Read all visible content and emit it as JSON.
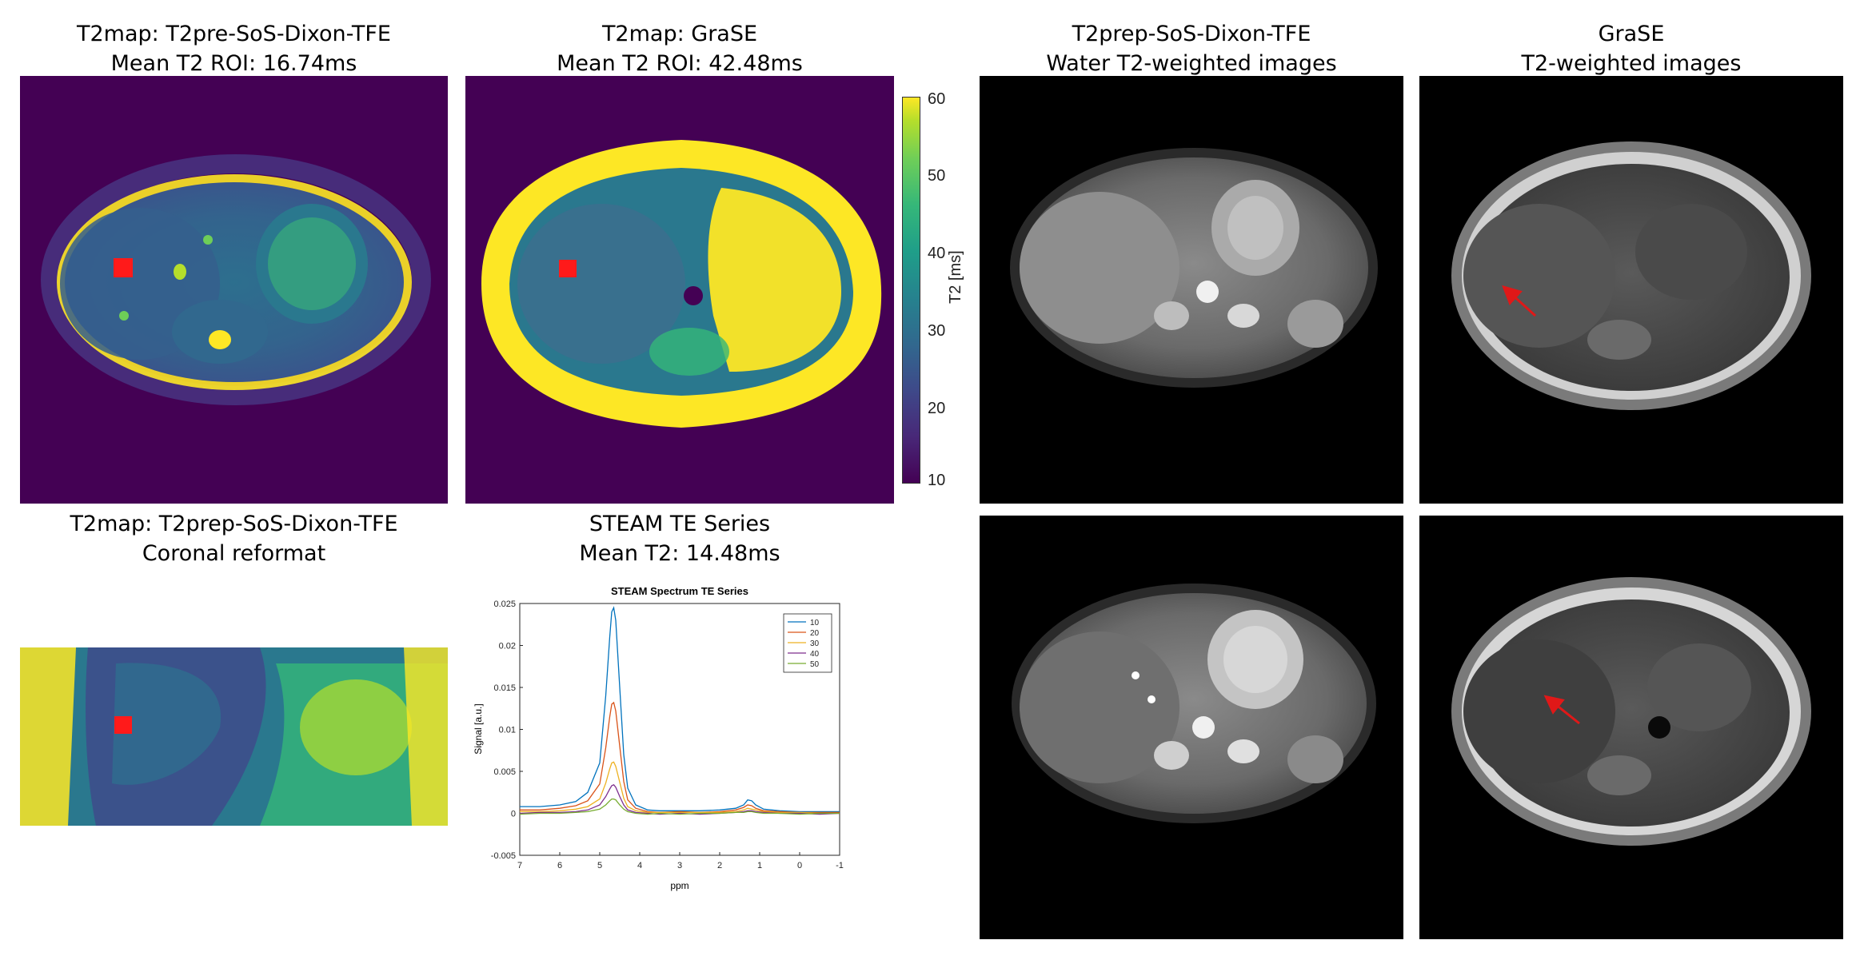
{
  "panels": {
    "t2map_sos": {
      "title": "T2map: T2pre-SoS-Dixon-TFE",
      "subtitle": "Mean T2 ROI: 16.74ms"
    },
    "t2map_grase": {
      "title": "T2map: GraSE",
      "subtitle": "Mean T2 ROI: 42.48ms"
    },
    "water_t2w": {
      "title": "T2prep-SoS-Dixon-TFE",
      "subtitle": "Water T2-weighted images"
    },
    "grase_t2w": {
      "title": "GraSE",
      "subtitle": "T2-weighted images"
    },
    "coronal": {
      "title": "T2map: T2prep-SoS-Dixon-TFE",
      "subtitle": "Coronal reformat"
    },
    "steam": {
      "title": "STEAM TE Series",
      "subtitle": "Mean T2: 14.48ms"
    }
  },
  "colorbar": {
    "label": "T2 [ms]",
    "ticks": [
      "60",
      "50",
      "40",
      "30",
      "20",
      "10"
    ],
    "colormap": "viridis"
  },
  "roi_color": "#ff1a1a",
  "arrow_color": "#e01818",
  "chart_data": {
    "type": "line",
    "title": "STEAM Spectrum TE Series",
    "xlabel": "ppm",
    "ylabel": "Signal [a.u.]",
    "xlim": [
      7,
      -1
    ],
    "ylim": [
      -0.005,
      0.025
    ],
    "x_reversed": true,
    "xticks": [
      "7",
      "6",
      "5",
      "4",
      "3",
      "2",
      "1",
      "0",
      "-1"
    ],
    "yticks": [
      "0.025",
      "0.02",
      "0.015",
      "0.01",
      "0.005",
      "0",
      "-0.005"
    ],
    "legend_position": "top-right",
    "x": [
      7.0,
      6.5,
      6.0,
      5.6,
      5.3,
      5.0,
      4.85,
      4.75,
      4.7,
      4.65,
      4.6,
      4.5,
      4.4,
      4.3,
      4.1,
      3.8,
      3.5,
      3.0,
      2.5,
      2.0,
      1.6,
      1.4,
      1.3,
      1.2,
      1.1,
      0.9,
      0.5,
      0.0,
      -0.5,
      -1.0
    ],
    "series": [
      {
        "name": "10",
        "color": "#0072bd",
        "values": [
          0.0008,
          0.0008,
          0.001,
          0.0014,
          0.0025,
          0.006,
          0.014,
          0.021,
          0.024,
          0.0245,
          0.023,
          0.015,
          0.007,
          0.003,
          0.001,
          0.0004,
          0.0003,
          0.0003,
          0.0003,
          0.0004,
          0.0006,
          0.001,
          0.0016,
          0.0015,
          0.001,
          0.0005,
          0.0003,
          0.0002,
          0.0002,
          0.0002
        ]
      },
      {
        "name": "20",
        "color": "#d95319",
        "values": [
          0.0004,
          0.0004,
          0.0006,
          0.0009,
          0.0015,
          0.0035,
          0.0078,
          0.0115,
          0.013,
          0.0132,
          0.0122,
          0.008,
          0.0038,
          0.0016,
          0.0006,
          0.0002,
          0.0001,
          0.0002,
          0.0001,
          0.0002,
          0.0004,
          0.0007,
          0.001,
          0.0009,
          0.0006,
          0.0003,
          0.0002,
          0.0001,
          0.0001,
          0.0001
        ]
      },
      {
        "name": "30",
        "color": "#edb120",
        "values": [
          0.0002,
          0.0002,
          0.0003,
          0.0005,
          0.0008,
          0.0017,
          0.0036,
          0.0053,
          0.006,
          0.0061,
          0.0056,
          0.0037,
          0.0018,
          0.0008,
          0.0003,
          0.0001,
          0.0001,
          0.0001,
          0.0001,
          0.0001,
          0.0002,
          0.0004,
          0.0006,
          0.0005,
          0.0004,
          0.0002,
          0.0001,
          0.0001,
          0.0,
          0.0
        ]
      },
      {
        "name": "40",
        "color": "#7e2f8e",
        "values": [
          0.0,
          0.0001,
          0.0001,
          0.0002,
          0.0004,
          0.001,
          0.002,
          0.0029,
          0.0033,
          0.0034,
          0.0031,
          0.002,
          0.001,
          0.0004,
          0.0001,
          0.0,
          -0.0001,
          0.0,
          -0.0001,
          0.0,
          0.0001,
          0.0002,
          0.0003,
          0.0003,
          0.0002,
          0.0001,
          0.0,
          0.0,
          -0.0001,
          0.0
        ]
      },
      {
        "name": "50",
        "color": "#77ac30",
        "values": [
          -0.0001,
          0.0,
          0.0,
          0.0001,
          0.0002,
          0.0005,
          0.001,
          0.0015,
          0.0017,
          0.0017,
          0.0016,
          0.001,
          0.0005,
          0.0002,
          0.0,
          -0.0001,
          0.0,
          -0.0001,
          0.0,
          0.0,
          0.0001,
          0.0001,
          0.0002,
          0.0002,
          0.0001,
          0.0,
          0.0,
          -0.0001,
          0.0,
          0.0
        ]
      }
    ]
  }
}
